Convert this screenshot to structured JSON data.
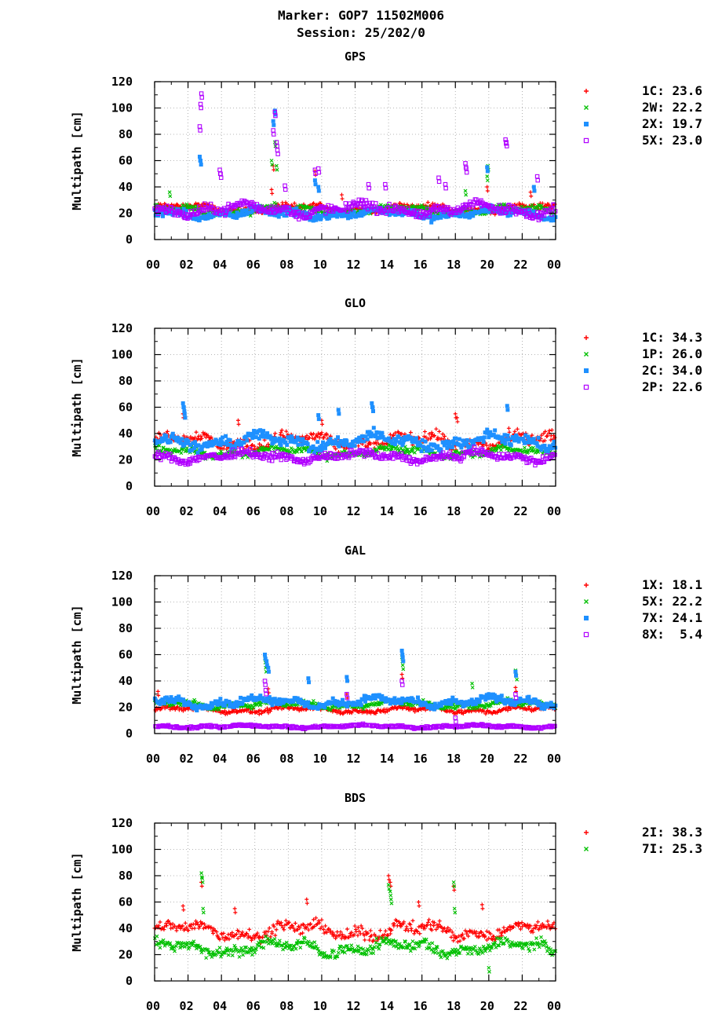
{
  "header": {
    "title_line1": "Marker: GOP7 11502M006",
    "title_line2": "Session: 25/202/0"
  },
  "colors": {
    "red": "#ff0000",
    "green": "#00c000",
    "blue": "#1e90ff",
    "purple": "#b000ff",
    "grid": "#a0a0a0",
    "axis": "#000000"
  },
  "chart_data": [
    {
      "type": "scatter",
      "title": "GPS",
      "ylabel": "Multipath [cm]",
      "ylim": [
        0,
        120
      ],
      "xlim": [
        0,
        24
      ],
      "yticks": [
        "0",
        "20",
        "40",
        "60",
        "80",
        "100",
        "120"
      ],
      "xticks": [
        "00",
        "02",
        "04",
        "06",
        "08",
        "10",
        "12",
        "14",
        "16",
        "18",
        "20",
        "22",
        "00"
      ],
      "grid": true,
      "legend_position": "right",
      "legend": [
        "1C: 23.6",
        "2W: 22.2",
        "2X: 19.7",
        "5X: 23.0"
      ],
      "series": [
        {
          "name": "1C",
          "marker": "plus",
          "color": "#ff0000",
          "base": 23.6,
          "spread": 3.5,
          "spikes": [
            [
              7.0,
              38
            ],
            [
              7.1,
              56
            ],
            [
              9.6,
              52
            ],
            [
              11.2,
              34
            ],
            [
              19.9,
              40
            ],
            [
              22.5,
              36
            ]
          ]
        },
        {
          "name": "2W",
          "marker": "cross",
          "color": "#00c000",
          "base": 22.2,
          "spread": 3.5,
          "spikes": [
            [
              0.9,
              36
            ],
            [
              7.0,
              60
            ],
            [
              7.2,
              74
            ],
            [
              7.3,
              56
            ],
            [
              18.6,
              37
            ],
            [
              19.9,
              48
            ],
            [
              19.95,
              56
            ]
          ]
        },
        {
          "name": "2X",
          "marker": "square",
          "color": "#1e90ff",
          "base": 19.7,
          "spread": 4.0,
          "spikes": [
            [
              2.7,
              63
            ],
            [
              2.75,
              60
            ],
            [
              7.1,
              90
            ],
            [
              7.2,
              98
            ],
            [
              9.6,
              45
            ],
            [
              9.8,
              40
            ],
            [
              19.9,
              55
            ],
            [
              22.7,
              40
            ]
          ]
        },
        {
          "name": "5X",
          "marker": "osquare",
          "color": "#b000ff",
          "base": 23.0,
          "spread": 5.0,
          "spikes": [
            [
              2.7,
              86
            ],
            [
              2.75,
              103
            ],
            [
              2.8,
              111
            ],
            [
              3.9,
              53
            ],
            [
              3.95,
              50
            ],
            [
              7.1,
              83
            ],
            [
              7.2,
              97
            ],
            [
              7.3,
              74
            ],
            [
              7.35,
              68
            ],
            [
              7.8,
              41
            ],
            [
              9.6,
              53
            ],
            [
              9.8,
              54
            ],
            [
              12.8,
              42
            ],
            [
              13.8,
              42
            ],
            [
              17.0,
              47
            ],
            [
              17.4,
              42
            ],
            [
              18.6,
              58
            ],
            [
              18.65,
              54
            ],
            [
              21.0,
              76
            ],
            [
              21.05,
              74
            ],
            [
              22.9,
              48
            ]
          ]
        }
      ]
    },
    {
      "type": "scatter",
      "title": "GLO",
      "ylabel": "Multipath [cm]",
      "ylim": [
        0,
        120
      ],
      "xlim": [
        0,
        24
      ],
      "yticks": [
        "0",
        "20",
        "40",
        "60",
        "80",
        "100",
        "120"
      ],
      "xticks": [
        "00",
        "02",
        "04",
        "06",
        "08",
        "10",
        "12",
        "14",
        "16",
        "18",
        "20",
        "22",
        "00"
      ],
      "grid": true,
      "legend_position": "right",
      "legend": [
        "1C: 34.3",
        "1P: 26.0",
        "2C: 34.0",
        "2P: 22.6"
      ],
      "series": [
        {
          "name": "1C",
          "marker": "plus",
          "color": "#ff0000",
          "base": 34.3,
          "spread": 6.0,
          "spikes": [
            [
              1.7,
              55
            ],
            [
              5.0,
              50
            ],
            [
              10.0,
              50
            ],
            [
              18.0,
              55
            ],
            [
              18.1,
              52
            ],
            [
              21.2,
              44
            ]
          ]
        },
        {
          "name": "1P",
          "marker": "cross",
          "color": "#00c000",
          "base": 26.0,
          "spread": 4.0,
          "spikes": [
            [
              10.5,
              35
            ],
            [
              15.0,
              30
            ]
          ]
        },
        {
          "name": "2C",
          "marker": "square",
          "color": "#1e90ff",
          "base": 34.0,
          "spread": 6.0,
          "spikes": [
            [
              1.7,
              63
            ],
            [
              1.75,
              60
            ],
            [
              1.8,
              55
            ],
            [
              9.8,
              54
            ],
            [
              11.0,
              58
            ],
            [
              13.0,
              63
            ],
            [
              13.05,
              60
            ],
            [
              21.1,
              61
            ]
          ]
        },
        {
          "name": "2P",
          "marker": "osquare",
          "color": "#b000ff",
          "base": 22.6,
          "spread": 4.0,
          "spikes": []
        }
      ]
    },
    {
      "type": "scatter",
      "title": "GAL",
      "ylabel": "Multipath [cm]",
      "ylim": [
        0,
        120
      ],
      "xlim": [
        0,
        24
      ],
      "yticks": [
        "0",
        "20",
        "40",
        "60",
        "80",
        "100",
        "120"
      ],
      "xticks": [
        "00",
        "02",
        "04",
        "06",
        "08",
        "10",
        "12",
        "14",
        "16",
        "18",
        "20",
        "22",
        "00"
      ],
      "grid": true,
      "legend_position": "right",
      "legend": [
        "1X: 18.1",
        "5X: 22.2",
        "7X: 24.1",
        "8X:  5.4"
      ],
      "series": [
        {
          "name": "1X",
          "marker": "plus",
          "color": "#ff0000",
          "base": 18.1,
          "spread": 2.5,
          "spikes": [
            [
              0.2,
              32
            ],
            [
              6.8,
              34
            ],
            [
              11.5,
              30
            ],
            [
              14.8,
              45
            ],
            [
              21.6,
              35
            ]
          ]
        },
        {
          "name": "5X",
          "marker": "cross",
          "color": "#00c000",
          "base": 22.2,
          "spread": 3.0,
          "spikes": [
            [
              6.6,
              57
            ],
            [
              6.65,
              50
            ],
            [
              14.8,
              58
            ],
            [
              14.85,
              52
            ],
            [
              19.0,
              38
            ],
            [
              21.6,
              48
            ],
            [
              21.65,
              44
            ]
          ]
        },
        {
          "name": "7X",
          "marker": "square",
          "color": "#1e90ff",
          "base": 24.1,
          "spread": 4.0,
          "spikes": [
            [
              6.6,
              60
            ],
            [
              6.7,
              55
            ],
            [
              6.8,
              50
            ],
            [
              9.2,
              42
            ],
            [
              11.5,
              43
            ],
            [
              14.8,
              63
            ],
            [
              14.85,
              58
            ],
            [
              21.6,
              47
            ]
          ]
        },
        {
          "name": "8X",
          "marker": "osquare",
          "color": "#b000ff",
          "base": 5.4,
          "spread": 1.2,
          "spikes": [
            [
              6.6,
              40
            ],
            [
              6.65,
              33
            ],
            [
              11.5,
              30
            ],
            [
              14.8,
              40
            ],
            [
              18.0,
              12
            ],
            [
              21.6,
              30
            ]
          ]
        }
      ]
    },
    {
      "type": "scatter",
      "title": "BDS",
      "ylabel": "Multipath [cm]",
      "ylim": [
        0,
        120
      ],
      "xlim": [
        0,
        24
      ],
      "yticks": [
        "0",
        "20",
        "40",
        "60",
        "80",
        "100",
        "120"
      ],
      "xticks": [
        "00",
        "02",
        "04",
        "06",
        "08",
        "10",
        "12",
        "14",
        "16",
        "18",
        "20",
        "22",
        "00"
      ],
      "grid": true,
      "legend_position": "right",
      "legend": [
        "2I: 38.3",
        "7I: 25.3"
      ],
      "series": [
        {
          "name": "2I",
          "marker": "plus",
          "color": "#ff0000",
          "base": 38.3,
          "spread": 6.5,
          "spikes": [
            [
              1.7,
              57
            ],
            [
              2.8,
              75
            ],
            [
              4.8,
              55
            ],
            [
              9.1,
              62
            ],
            [
              14.0,
              80
            ],
            [
              14.1,
              75
            ],
            [
              15.8,
              60
            ],
            [
              17.9,
              72
            ],
            [
              19.6,
              58
            ]
          ]
        },
        {
          "name": "7I",
          "marker": "cross",
          "color": "#00c000",
          "base": 25.3,
          "spread": 6.0,
          "spikes": [
            [
              2.8,
              82
            ],
            [
              2.85,
              78
            ],
            [
              2.9,
              55
            ],
            [
              14.0,
              73
            ],
            [
              14.1,
              68
            ],
            [
              14.15,
              62
            ],
            [
              17.9,
              75
            ],
            [
              17.95,
              55
            ],
            [
              20.0,
              10
            ]
          ]
        }
      ]
    }
  ]
}
